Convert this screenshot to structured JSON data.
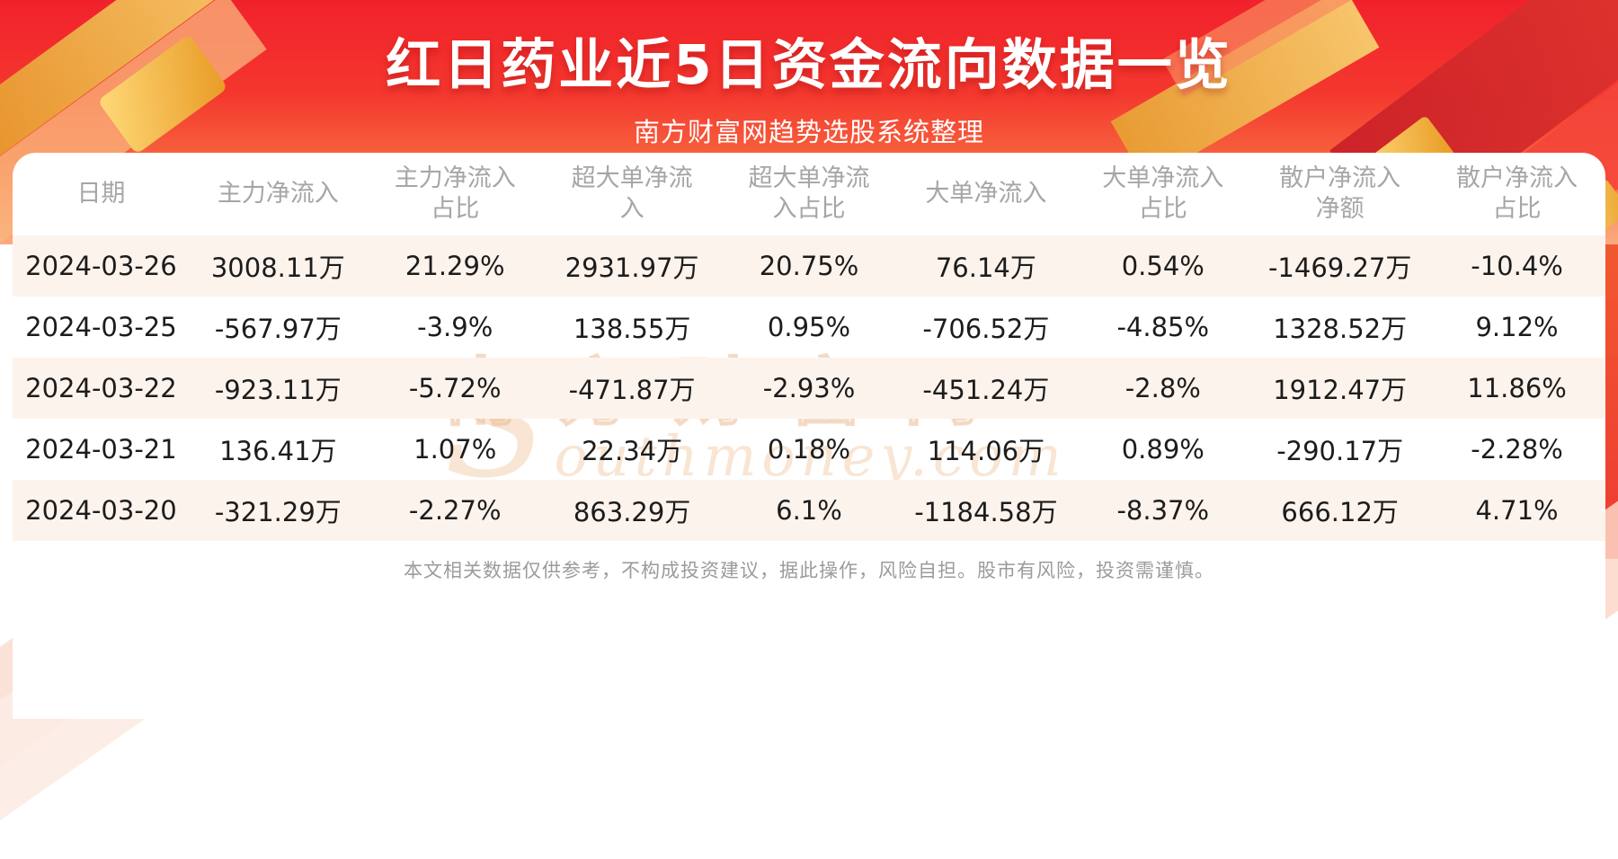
{
  "header": {
    "title": "红日药业近5日资金流向数据一览",
    "subtitle": "南方财富网趋势选股系统整理"
  },
  "chart_data": {
    "type": "table",
    "title": "红日药业近5日资金流向数据一览",
    "columns": [
      "日期",
      "主力净流入",
      "主力净流入占比",
      "超大单净流入",
      "超大单净流入占比",
      "大单净流入",
      "大单净流入占比",
      "散户净流入净额",
      "散户净流入占比"
    ],
    "rows": [
      [
        "2024-03-26",
        "3008.11万",
        "21.29%",
        "2931.97万",
        "20.75%",
        "76.14万",
        "0.54%",
        "-1469.27万",
        "-10.4%"
      ],
      [
        "2024-03-25",
        "-567.97万",
        "-3.9%",
        "138.55万",
        "0.95%",
        "-706.52万",
        "-4.85%",
        "1328.52万",
        "9.12%"
      ],
      [
        "2024-03-22",
        "-923.11万",
        "-5.72%",
        "-471.87万",
        "-2.93%",
        "-451.24万",
        "-2.8%",
        "1912.47万",
        "11.86%"
      ],
      [
        "2024-03-21",
        "136.41万",
        "1.07%",
        "22.34万",
        "0.18%",
        "114.06万",
        "0.89%",
        "-290.17万",
        "-2.28%"
      ],
      [
        "2024-03-20",
        "-321.29万",
        "-2.27%",
        "863.29万",
        "6.1%",
        "-1184.58万",
        "-8.37%",
        "666.12万",
        "4.71%"
      ]
    ]
  },
  "watermark": {
    "cn": "南方财富网",
    "en": "Southmoney.com"
  },
  "footer": {
    "disclaimer": "本文相关数据仅供参考，不构成投资建议，据此操作，风险自担。股市有风险，投资需谨慎。"
  },
  "colors": {
    "banner_red": "#f1212b",
    "banner_orange": "#fbab7c",
    "ribbon_gold": "#f6c968",
    "row_alt": "#fdf3ed",
    "header_text": "#a6a6a6",
    "body_text": "#1c1c1c",
    "footer_text": "#9b9b9b"
  }
}
